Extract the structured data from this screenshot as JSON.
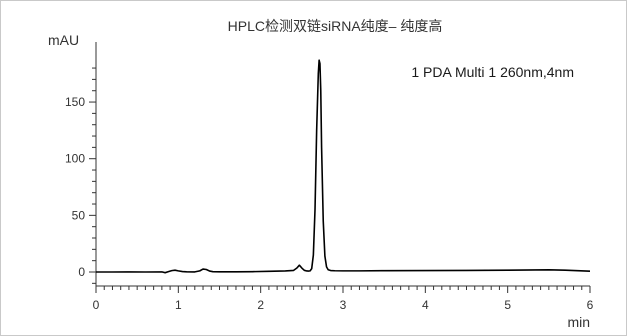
{
  "chart_data": {
    "type": "line",
    "title": "HPLC检测双链siRNA纯度– 纯度高",
    "ylabel": "mAU",
    "xlabel": "min",
    "legend": "1 PDA Multi 1 260nm,4nm",
    "legend_position": "top-right",
    "grid": false,
    "xlim": [
      0,
      6
    ],
    "ylim": [
      -10,
      200
    ],
    "x_ticks": [
      0,
      1,
      2,
      3,
      4,
      5,
      6
    ],
    "y_ticks": [
      0,
      50,
      100,
      150
    ],
    "series": [
      {
        "color": "#000000",
        "x": [
          0,
          0.2,
          0.4,
          0.6,
          0.8,
          0.84,
          0.88,
          0.92,
          0.96,
          1.0,
          1.05,
          1.1,
          1.2,
          1.26,
          1.3,
          1.34,
          1.38,
          1.42,
          1.5,
          1.7,
          1.9,
          2.1,
          2.3,
          2.4,
          2.44,
          2.47,
          2.5,
          2.53,
          2.56,
          2.58,
          2.6,
          2.62,
          2.64,
          2.66,
          2.68,
          2.7,
          2.71,
          2.72,
          2.73,
          2.74,
          2.76,
          2.78,
          2.8,
          2.82,
          2.85,
          2.9,
          3.0,
          3.2,
          3.5,
          4.0,
          4.5,
          5.0,
          5.5,
          5.7,
          5.85,
          6.0
        ],
        "y": [
          0,
          0,
          0.1,
          0,
          0.1,
          -0.6,
          0.3,
          1.2,
          1.6,
          1.0,
          0.4,
          0.2,
          0.1,
          1.0,
          2.6,
          2.2,
          0.8,
          0.3,
          0.2,
          0.2,
          0.3,
          0.6,
          0.9,
          1.4,
          3.5,
          6.0,
          3.5,
          1.5,
          0.9,
          0.8,
          1.0,
          3.0,
          15,
          55,
          125,
          175,
          187,
          184,
          160,
          110,
          45,
          14,
          4.5,
          2.0,
          1.3,
          1.1,
          1.0,
          1.0,
          1.2,
          1.3,
          1.4,
          1.6,
          1.9,
          1.6,
          1.2,
          0.7
        ]
      }
    ]
  }
}
